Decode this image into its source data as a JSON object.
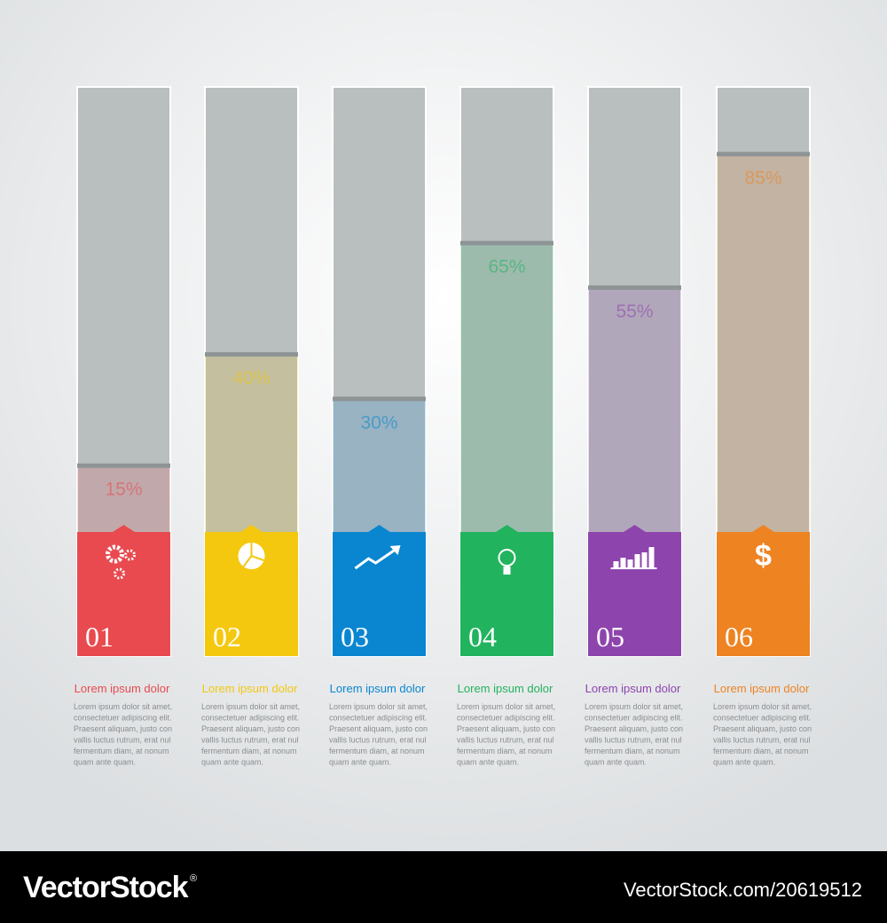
{
  "chart_data": {
    "type": "bar",
    "categories": [
      "01",
      "02",
      "03",
      "04",
      "05",
      "06"
    ],
    "values": [
      15,
      40,
      30,
      65,
      55,
      85
    ],
    "value_labels": [
      "15%",
      "40%",
      "30%",
      "65%",
      "55%",
      "85%"
    ],
    "colors": [
      "#e84a4f",
      "#f4c80f",
      "#0a86d0",
      "#22b35e",
      "#8e44ad",
      "#ee8322"
    ],
    "ylim": [
      0,
      100
    ]
  },
  "captions": [
    {
      "title": "Lorem ipsum dolor",
      "lines": [
        "Lorem ipsum dolor sit amet,",
        "consectetuer adipiscing elit.",
        "Praesent aliquam, justo con",
        "vallis  luctus rutrum, erat  nul",
        "fermentum diam, at nonum",
        "quam ante  quam."
      ]
    },
    {
      "title": "Lorem ipsum dolor",
      "lines": [
        "Lorem ipsum dolor sit amet,",
        "consectetuer adipiscing elit.",
        "Praesent aliquam, justo con",
        "vallis  luctus rutrum, erat  nul",
        "fermentum diam, at nonum",
        "quam ante  quam."
      ]
    },
    {
      "title": "Lorem ipsum dolor",
      "lines": [
        "Lorem ipsum dolor sit amet,",
        "consectetuer adipiscing elit.",
        "Praesent aliquam, justo con",
        "vallis  luctus rutrum, erat  nul",
        "fermentum diam, at nonum",
        "quam ante  quam."
      ]
    },
    {
      "title": "Lorem ipsum dolor",
      "lines": [
        "Lorem ipsum dolor sit amet,",
        "consectetuer adipiscing elit.",
        "Praesent aliquam, justo con",
        "vallis  luctus rutrum, erat  nul",
        "fermentum diam, at nonum",
        "quam ante  quam."
      ]
    },
    {
      "title": "Lorem ipsum dolor",
      "lines": [
        "Lorem ipsum dolor sit amet,",
        "consectetuer adipiscing elit.",
        "Praesent aliquam, justo con",
        "vallis  luctus rutrum, erat  nul",
        "fermentum diam, at nonum",
        "quam ante  quam."
      ]
    },
    {
      "title": "Lorem ipsum dolor",
      "lines": [
        "Lorem ipsum dolor sit amet,",
        "consectetuer adipiscing elit.",
        "Praesent aliquam, justo con",
        "vallis  luctus rutrum, erat  nul",
        "fermentum diam, at nonum",
        "quam ante  quam."
      ]
    }
  ],
  "footer": {
    "brand": "VectorStock",
    "mark": "®",
    "id": "VectorStock.com/20619512"
  }
}
